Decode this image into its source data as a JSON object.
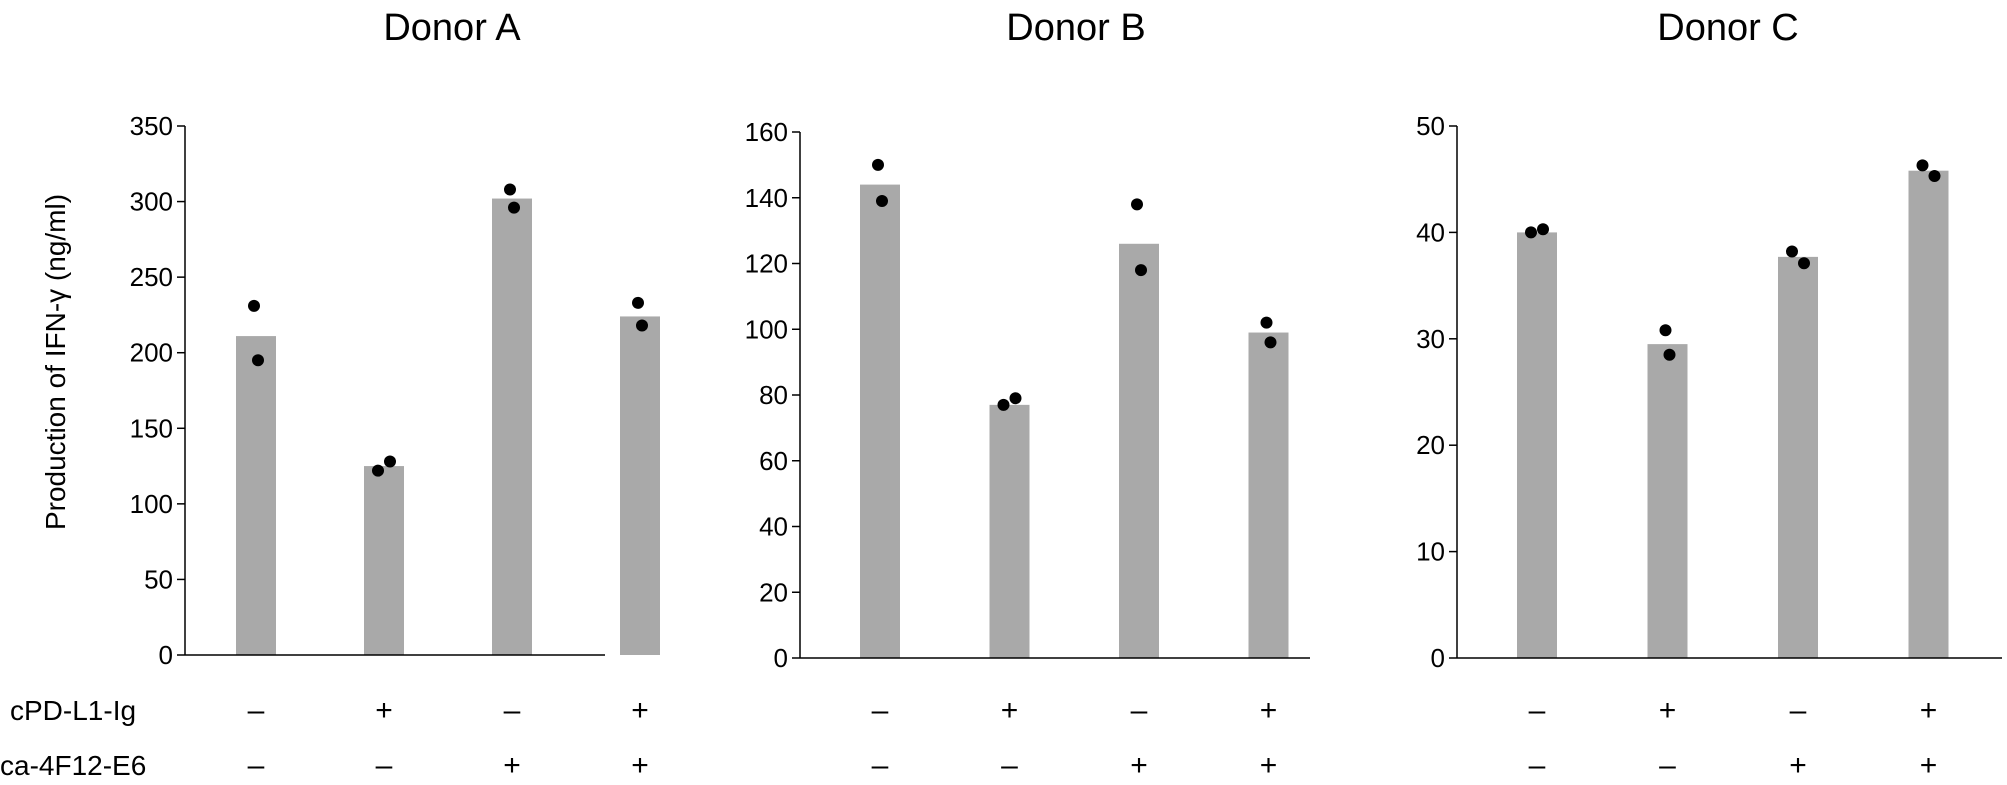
{
  "figure": {
    "ylabel": "Production of IFN-γ (ng/ml)",
    "row_labels": [
      "cPD-L1-Ig",
      "ca-4F12-E6"
    ]
  },
  "chart_data": [
    {
      "type": "bar",
      "title": "Donor A",
      "categories": [
        "– / –",
        "+ / –",
        "– / +",
        "+ / +"
      ],
      "row1": [
        "–",
        "+",
        "–",
        "+"
      ],
      "row2": [
        "–",
        "–",
        "+",
        "+"
      ],
      "values": [
        211,
        125,
        302,
        224
      ],
      "points": [
        [
          231,
          195
        ],
        [
          122,
          128
        ],
        [
          308,
          296
        ],
        [
          233,
          218
        ]
      ],
      "ylim": [
        0,
        350
      ],
      "yticks": [
        0,
        50,
        100,
        150,
        200,
        250,
        300,
        350
      ],
      "bar_color": "#a9a9a9",
      "point_color": "#000000"
    },
    {
      "type": "bar",
      "title": "Donor B",
      "categories": [
        "– / –",
        "+ / –",
        "– / +",
        "+ / +"
      ],
      "row1": [
        "–",
        "+",
        "–",
        "+"
      ],
      "row2": [
        "–",
        "–",
        "+",
        "+"
      ],
      "values": [
        144,
        77,
        126,
        99
      ],
      "points": [
        [
          150,
          139
        ],
        [
          77,
          79
        ],
        [
          138,
          118
        ],
        [
          102,
          96
        ]
      ],
      "ylim": [
        0,
        160
      ],
      "yticks": [
        0,
        20,
        40,
        60,
        80,
        100,
        120,
        140,
        160
      ],
      "bar_color": "#a9a9a9",
      "point_color": "#000000"
    },
    {
      "type": "bar",
      "title": "Donor C",
      "categories": [
        "– / –",
        "+ / –",
        "– / +",
        "+ / +"
      ],
      "row1": [
        "–",
        "+",
        "–",
        "+"
      ],
      "row2": [
        "–",
        "–",
        "+",
        "+"
      ],
      "values": [
        40,
        29.5,
        37.7,
        45.8
      ],
      "points": [
        [
          40,
          40.3
        ],
        [
          30.8,
          28.5
        ],
        [
          38.2,
          37.1
        ],
        [
          46.3,
          45.3
        ]
      ],
      "ylim": [
        0,
        50
      ],
      "yticks": [
        0,
        10,
        20,
        30,
        40,
        50
      ],
      "bar_color": "#a9a9a9",
      "point_color": "#000000"
    }
  ]
}
